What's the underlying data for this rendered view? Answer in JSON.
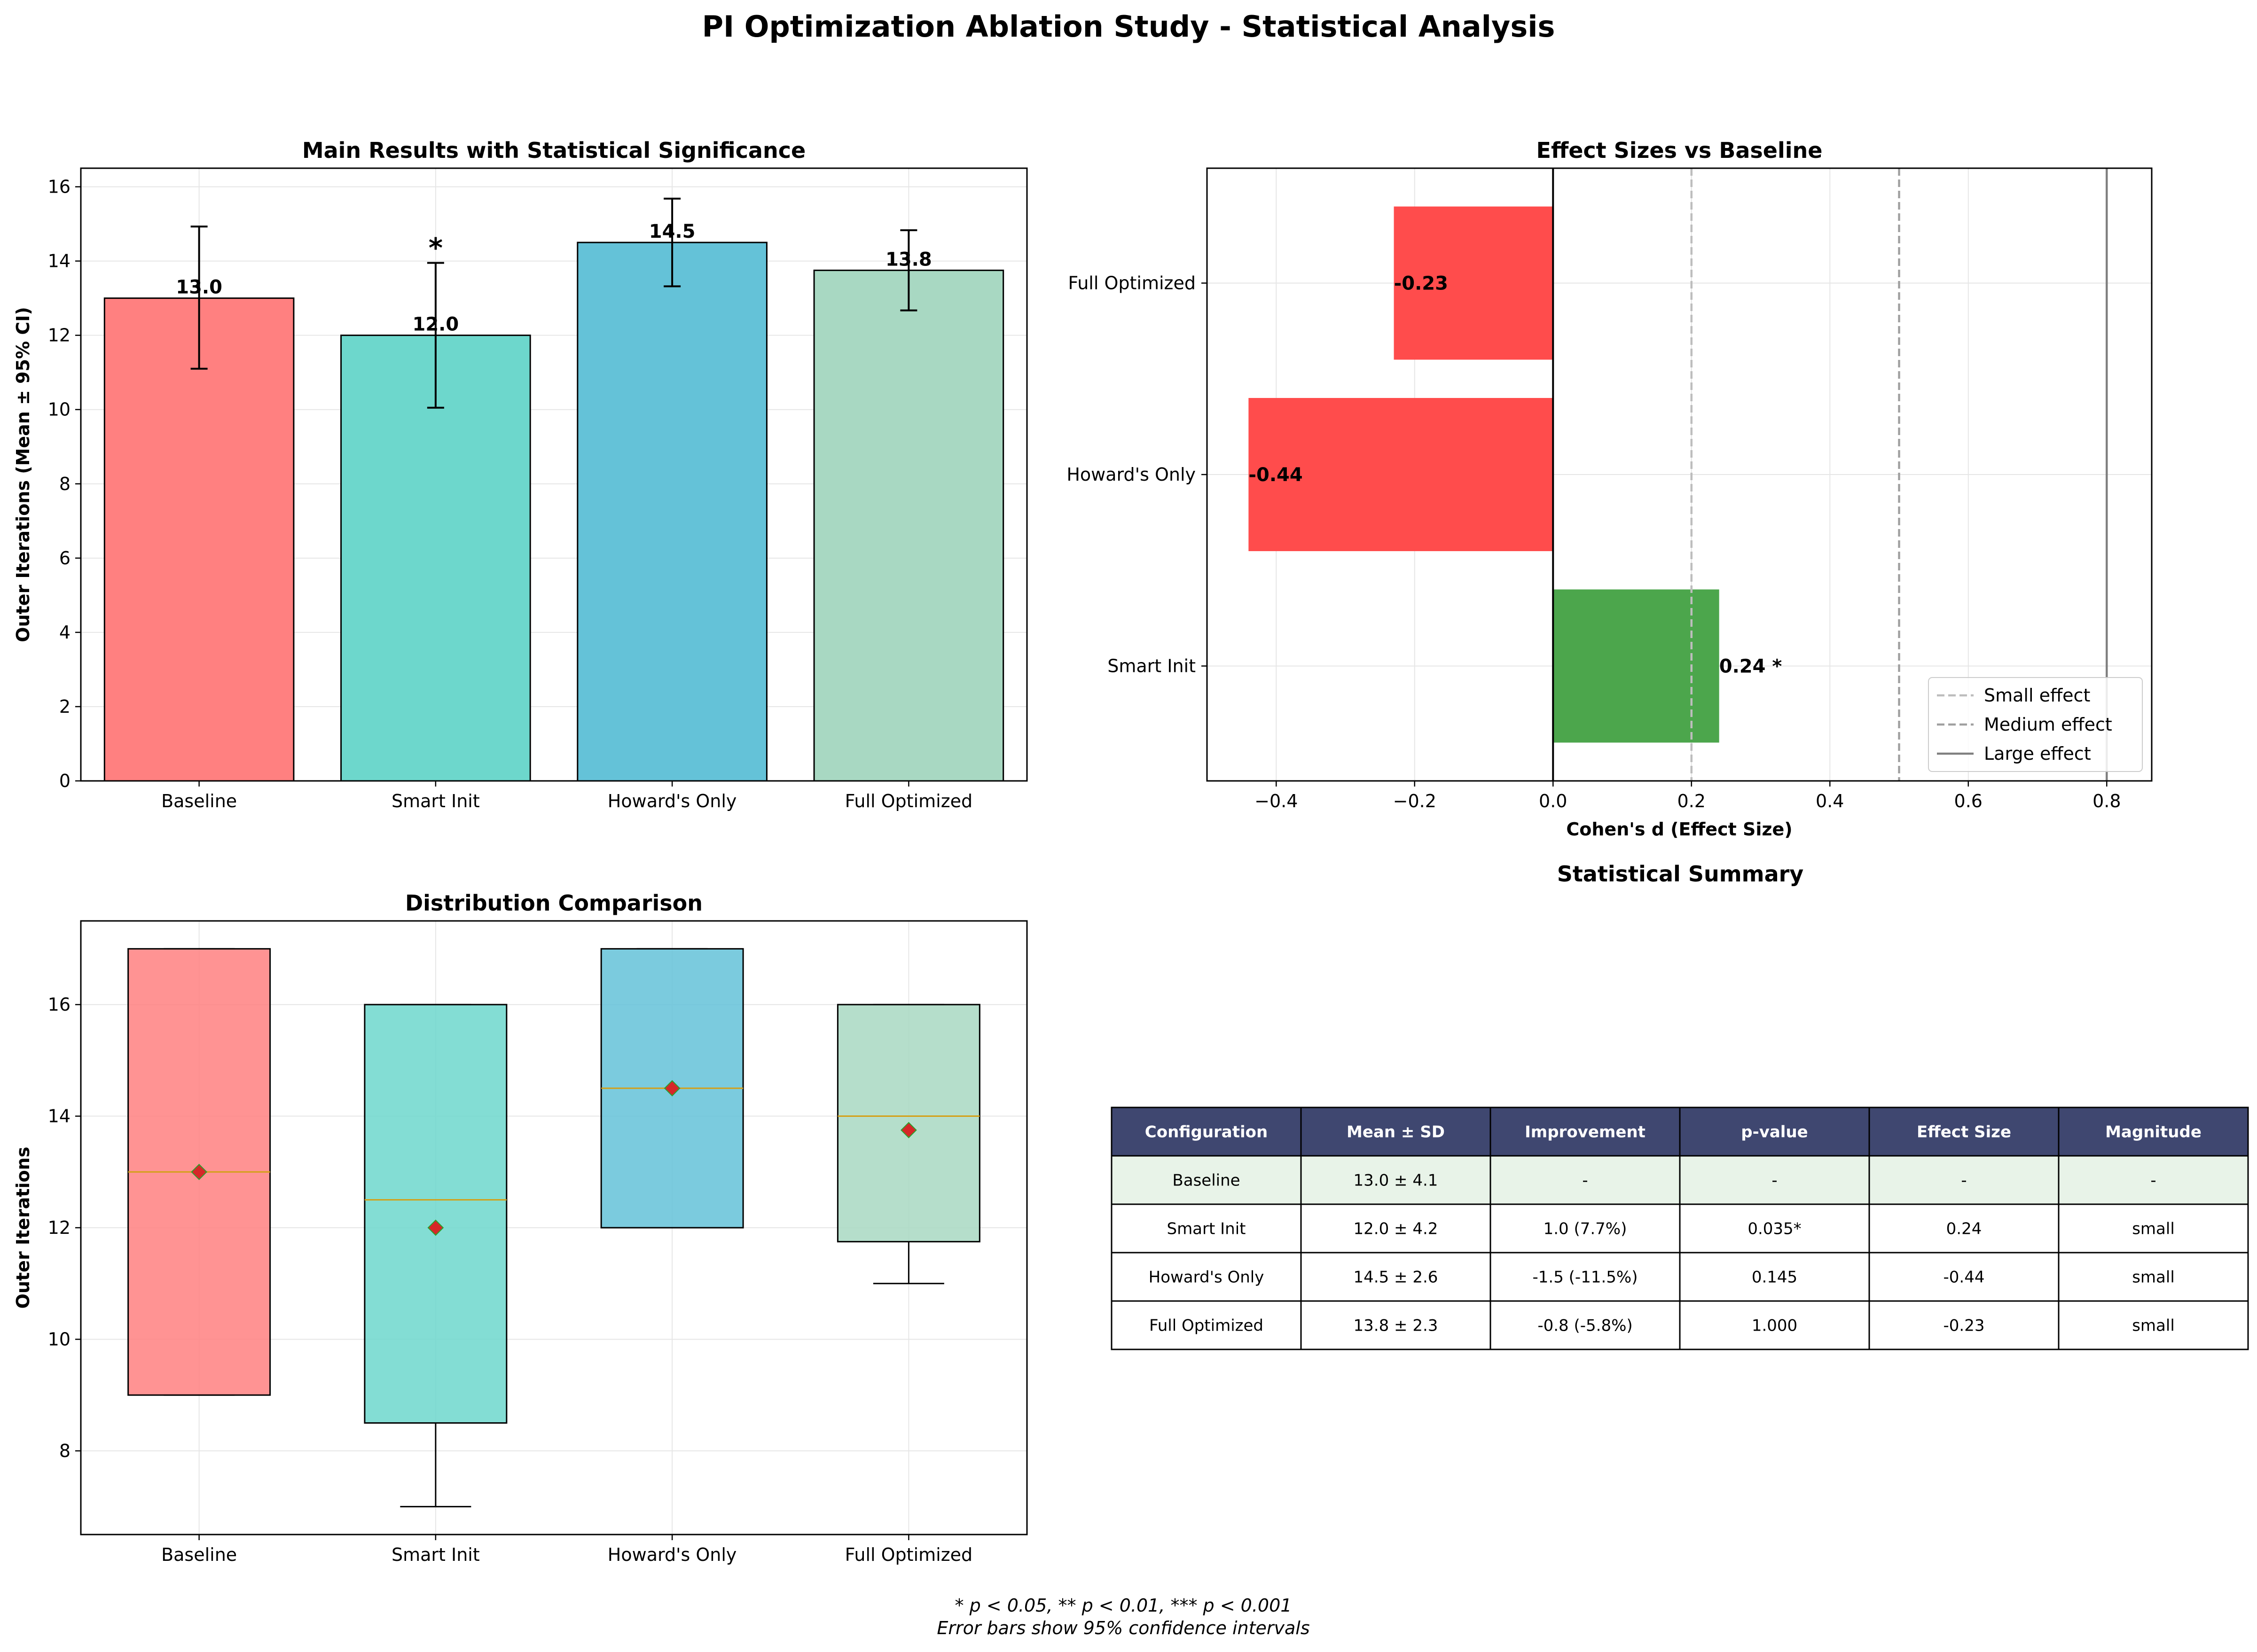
{
  "figure": {
    "title": "PI Optimization Ablation Study - Statistical Analysis",
    "footnote_line1": "* p < 0.05, ** p < 0.01, *** p < 0.001",
    "footnote_line2": "Error bars show 95% confidence intervals"
  },
  "colors": {
    "baseline": "#ff8080",
    "smart_init": "#6dd7cc",
    "howards_only": "#64c2d8",
    "full_optimized": "#a8d8c2",
    "effect_negative": "#ff4c4c",
    "effect_positive": "#4ca64c",
    "table_header": "#3f4770",
    "table_highlight": "#e8f3e8",
    "median_line": "#d4a017",
    "mean_marker": "#d62728",
    "mean_marker_edge": "#2ca02c"
  },
  "chart_data": [
    {
      "type": "bar",
      "title": "Main Results with Statistical Significance",
      "xlabel": "",
      "ylabel": "Outer Iterations (Mean ± 95% CI)",
      "categories": [
        "Baseline",
        "Smart Init",
        "Howard's Only",
        "Full Optimized"
      ],
      "values": [
        13.0,
        12.0,
        14.5,
        13.75
      ],
      "value_labels": [
        "13.0",
        "12.0",
        "14.5",
        "13.8"
      ],
      "ci_low": [
        11.1,
        10.05,
        13.32,
        12.67
      ],
      "ci_high": [
        14.93,
        13.95,
        15.68,
        14.83
      ],
      "significance": [
        "",
        "*",
        "",
        ""
      ],
      "ylim": [
        0,
        16.5
      ],
      "yticks": [
        0,
        2,
        4,
        6,
        8,
        10,
        12,
        14,
        16
      ],
      "grid": true
    },
    {
      "type": "bar",
      "orientation": "horizontal",
      "title": "Effect Sizes vs Baseline",
      "xlabel": "Cohen's d (Effect Size)",
      "ylabel": "",
      "categories": [
        "Smart Init",
        "Howard's Only",
        "Full Optimized"
      ],
      "values": [
        0.24,
        -0.44,
        -0.23
      ],
      "value_labels": [
        "0.24 *",
        "-0.44",
        "-0.23"
      ],
      "xlim": [
        -0.5,
        0.865
      ],
      "xticks": [
        -0.4,
        -0.2,
        0.0,
        0.2,
        0.4,
        0.6,
        0.8
      ],
      "xtick_labels": [
        "−0.4",
        "−0.2",
        "0.0",
        "0.2",
        "0.4",
        "0.6",
        "0.8"
      ],
      "reference_lines": [
        {
          "name": "Small effect",
          "x": 0.2,
          "style": "dashed"
        },
        {
          "name": "Medium effect",
          "x": 0.5,
          "style": "dashed"
        },
        {
          "name": "Large effect",
          "x": 0.8,
          "style": "solid"
        }
      ],
      "legend_position": "lower-right",
      "grid": true
    },
    {
      "type": "box",
      "title": "Distribution Comparison",
      "xlabel": "",
      "ylabel": "Outer Iterations",
      "categories": [
        "Baseline",
        "Smart Init",
        "Howard's Only",
        "Full Optimized"
      ],
      "boxes": [
        {
          "whisker_low": 9,
          "q1": 9,
          "median": 13,
          "q3": 17,
          "whisker_high": 17,
          "mean": 13.0
        },
        {
          "whisker_low": 7,
          "q1": 8.5,
          "median": 12.5,
          "q3": 16,
          "whisker_high": 16,
          "mean": 12.0
        },
        {
          "whisker_low": 12,
          "q1": 12,
          "median": 14.5,
          "q3": 17,
          "whisker_high": 17,
          "mean": 14.5
        },
        {
          "whisker_low": 11,
          "q1": 11.75,
          "median": 14,
          "q3": 16,
          "whisker_high": 16,
          "mean": 13.75
        }
      ],
      "ylim": [
        6.5,
        17.5
      ],
      "yticks": [
        8,
        10,
        12,
        14,
        16
      ],
      "grid": true
    },
    {
      "type": "table",
      "title": "Statistical Summary",
      "columns": [
        "Configuration",
        "Mean ± SD",
        "Improvement",
        "p-value",
        "Effect Size",
        "Magnitude"
      ],
      "rows": [
        [
          "Baseline",
          "13.0 ± 4.1",
          "-",
          "-",
          "-",
          "-"
        ],
        [
          "Smart Init",
          "12.0 ± 4.2",
          "1.0 (7.7%)",
          "0.035*",
          "0.24",
          "small"
        ],
        [
          "Howard's Only",
          "14.5 ± 2.6",
          "-1.5 (-11.5%)",
          "0.145",
          "-0.44",
          "small"
        ],
        [
          "Full Optimized",
          "13.8 ± 2.3",
          "-0.8 (-5.8%)",
          "1.000",
          "-0.23",
          "small"
        ]
      ],
      "highlighted_row": 0
    }
  ]
}
